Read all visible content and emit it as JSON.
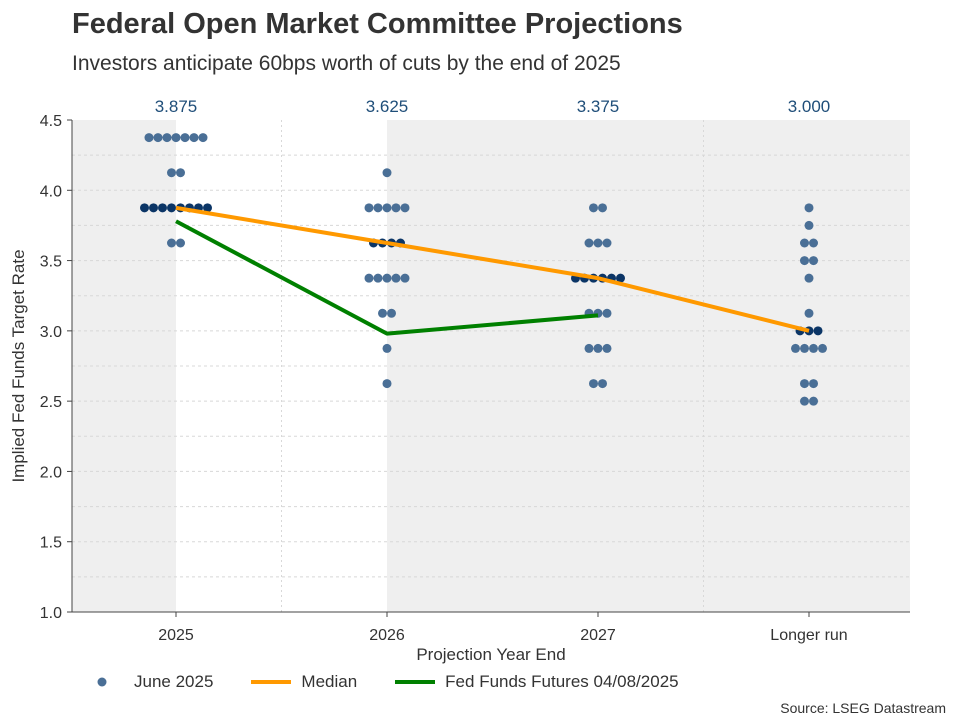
{
  "chart_data": {
    "type": "scatter",
    "title": "Federal Open Market Committee Projections",
    "subtitle": "Investors anticipate 60bps worth of cuts by the end of 2025",
    "xlabel": "Projection Year End",
    "ylabel": "Implied Fed Funds Target Rate",
    "categories": [
      "2025",
      "2026",
      "2027",
      "Longer run"
    ],
    "ylim": [
      1.0,
      4.5
    ],
    "yticks": [
      "1.0",
      "1.5",
      "2.0",
      "2.5",
      "3.0",
      "3.5",
      "4.0",
      "4.5"
    ],
    "grid": true,
    "median_labels": [
      "3.875",
      "3.625",
      "3.375",
      "3.000"
    ],
    "dots": [
      {
        "category": "2025",
        "counts": [
          [
            4.375,
            7
          ],
          [
            4.125,
            2
          ],
          [
            3.875,
            8
          ],
          [
            3.625,
            2
          ]
        ]
      },
      {
        "category": "2026",
        "counts": [
          [
            4.125,
            1
          ],
          [
            3.875,
            5
          ],
          [
            3.625,
            4
          ],
          [
            3.375,
            5
          ],
          [
            3.125,
            2
          ],
          [
            2.875,
            1
          ],
          [
            2.625,
            1
          ]
        ]
      },
      {
        "category": "2027",
        "counts": [
          [
            3.875,
            2
          ],
          [
            3.625,
            3
          ],
          [
            3.375,
            6
          ],
          [
            3.125,
            3
          ],
          [
            2.875,
            3
          ],
          [
            2.625,
            2
          ]
        ]
      },
      {
        "category": "Longer run",
        "counts": [
          [
            3.875,
            1
          ],
          [
            3.75,
            1
          ],
          [
            3.625,
            2
          ],
          [
            3.5,
            2
          ],
          [
            3.375,
            1
          ],
          [
            3.125,
            1
          ],
          [
            3.0,
            3
          ],
          [
            2.875,
            4
          ],
          [
            2.625,
            2
          ],
          [
            2.5,
            2
          ]
        ]
      }
    ],
    "series": [
      {
        "name": "June 2025",
        "kind": "dots",
        "color": "#4a6f96",
        "median_color": "#0b3566"
      },
      {
        "name": "Median",
        "kind": "line",
        "color": "#ff9900",
        "values": [
          3.875,
          3.625,
          3.375,
          3.0
        ]
      },
      {
        "name": "Fed Funds Futures 04/08/2025",
        "kind": "line",
        "color": "#008000",
        "values": [
          3.78,
          2.98,
          3.11,
          null
        ]
      }
    ],
    "legend_position": "bottom",
    "source": "Source: LSEG Datastream"
  }
}
